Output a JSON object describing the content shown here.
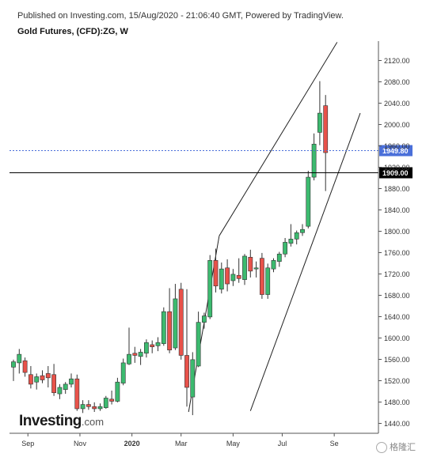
{
  "header": {
    "published": "Published on Investing.com, 15/Aug/2020 - 21:06:40 GMT, Powered by TradingView.",
    "title": "Gold Futures, (CFD):ZG, W"
  },
  "branding": {
    "logo_main": "Investing",
    "logo_suffix": ".com",
    "watermark": "格隆汇"
  },
  "colors": {
    "up": "#3cba6f",
    "down": "#e8524a",
    "current_price_line": "#4a6fd9",
    "reference_line": "#000000",
    "channel": "#222222"
  },
  "chart_data": {
    "type": "candlestick",
    "title": "Gold Futures, (CFD):ZG, W",
    "interval": "W",
    "ylim": [
      1420,
      2155
    ],
    "y_ticks": [
      1440,
      1480,
      1520,
      1560,
      1600,
      1640,
      1680,
      1720,
      1760,
      1800,
      1840,
      1880,
      1920,
      1960,
      2000,
      2040,
      2080,
      2120
    ],
    "y_tick_labels": [
      "1440.00",
      "1480.00",
      "1520.00",
      "1560.00",
      "1600.00",
      "1640.00",
      "1680.00",
      "1720.00",
      "1760.00",
      "1800.00",
      "1840.00",
      "1880.00",
      "1920.00",
      "1960.00",
      "2000.00",
      "2040.00",
      "2080.00",
      "2120.00"
    ],
    "x_labels": [
      {
        "label": "Sep",
        "index": 2.5
      },
      {
        "label": "Nov",
        "index": 11.5
      },
      {
        "label": "2020",
        "index": 20.5
      },
      {
        "label": "Mar",
        "index": 29
      },
      {
        "label": "May",
        "index": 38
      },
      {
        "label": "Jul",
        "index": 46.5
      },
      {
        "label": "Se",
        "index": 55.5
      }
    ],
    "candles": [
      {
        "o": 1544,
        "h": 1558,
        "l": 1518,
        "c": 1554
      },
      {
        "o": 1552,
        "h": 1578,
        "l": 1532,
        "c": 1568
      },
      {
        "o": 1556,
        "h": 1562,
        "l": 1526,
        "c": 1534
      },
      {
        "o": 1530,
        "h": 1546,
        "l": 1504,
        "c": 1512
      },
      {
        "o": 1516,
        "h": 1532,
        "l": 1502,
        "c": 1526
      },
      {
        "o": 1528,
        "h": 1538,
        "l": 1514,
        "c": 1520
      },
      {
        "o": 1532,
        "h": 1546,
        "l": 1506,
        "c": 1524
      },
      {
        "o": 1530,
        "h": 1550,
        "l": 1490,
        "c": 1496
      },
      {
        "o": 1494,
        "h": 1512,
        "l": 1484,
        "c": 1506
      },
      {
        "o": 1502,
        "h": 1516,
        "l": 1494,
        "c": 1512
      },
      {
        "o": 1512,
        "h": 1532,
        "l": 1506,
        "c": 1522
      },
      {
        "o": 1522,
        "h": 1530,
        "l": 1462,
        "c": 1466
      },
      {
        "o": 1466,
        "h": 1482,
        "l": 1458,
        "c": 1474
      },
      {
        "o": 1474,
        "h": 1482,
        "l": 1464,
        "c": 1470
      },
      {
        "o": 1470,
        "h": 1478,
        "l": 1460,
        "c": 1466
      },
      {
        "o": 1466,
        "h": 1476,
        "l": 1462,
        "c": 1470
      },
      {
        "o": 1468,
        "h": 1490,
        "l": 1466,
        "c": 1486
      },
      {
        "o": 1484,
        "h": 1500,
        "l": 1474,
        "c": 1480
      },
      {
        "o": 1480,
        "h": 1524,
        "l": 1478,
        "c": 1516
      },
      {
        "o": 1514,
        "h": 1560,
        "l": 1510,
        "c": 1552
      },
      {
        "o": 1550,
        "h": 1618,
        "l": 1548,
        "c": 1568
      },
      {
        "o": 1570,
        "h": 1582,
        "l": 1552,
        "c": 1566
      },
      {
        "o": 1564,
        "h": 1578,
        "l": 1548,
        "c": 1572
      },
      {
        "o": 1570,
        "h": 1596,
        "l": 1562,
        "c": 1590
      },
      {
        "o": 1586,
        "h": 1594,
        "l": 1570,
        "c": 1582
      },
      {
        "o": 1584,
        "h": 1600,
        "l": 1574,
        "c": 1590
      },
      {
        "o": 1588,
        "h": 1656,
        "l": 1584,
        "c": 1648
      },
      {
        "o": 1648,
        "h": 1692,
        "l": 1570,
        "c": 1576
      },
      {
        "o": 1580,
        "h": 1700,
        "l": 1576,
        "c": 1672
      },
      {
        "o": 1690,
        "h": 1702,
        "l": 1558,
        "c": 1566
      },
      {
        "o": 1566,
        "h": 1690,
        "l": 1470,
        "c": 1506
      },
      {
        "o": 1488,
        "h": 1572,
        "l": 1454,
        "c": 1558
      },
      {
        "o": 1546,
        "h": 1648,
        "l": 1544,
        "c": 1628
      },
      {
        "o": 1628,
        "h": 1646,
        "l": 1616,
        "c": 1640
      },
      {
        "o": 1638,
        "h": 1754,
        "l": 1634,
        "c": 1744
      },
      {
        "o": 1744,
        "h": 1766,
        "l": 1684,
        "c": 1696
      },
      {
        "o": 1690,
        "h": 1740,
        "l": 1682,
        "c": 1728
      },
      {
        "o": 1730,
        "h": 1746,
        "l": 1686,
        "c": 1700
      },
      {
        "o": 1706,
        "h": 1728,
        "l": 1696,
        "c": 1718
      },
      {
        "o": 1716,
        "h": 1748,
        "l": 1702,
        "c": 1710
      },
      {
        "o": 1708,
        "h": 1756,
        "l": 1698,
        "c": 1752
      },
      {
        "o": 1750,
        "h": 1764,
        "l": 1712,
        "c": 1724
      },
      {
        "o": 1728,
        "h": 1742,
        "l": 1712,
        "c": 1730
      },
      {
        "o": 1748,
        "h": 1758,
        "l": 1672,
        "c": 1680
      },
      {
        "o": 1680,
        "h": 1738,
        "l": 1672,
        "c": 1730
      },
      {
        "o": 1728,
        "h": 1748,
        "l": 1722,
        "c": 1744
      },
      {
        "o": 1742,
        "h": 1760,
        "l": 1732,
        "c": 1756
      },
      {
        "o": 1756,
        "h": 1786,
        "l": 1750,
        "c": 1778
      },
      {
        "o": 1776,
        "h": 1812,
        "l": 1770,
        "c": 1784
      },
      {
        "o": 1784,
        "h": 1800,
        "l": 1774,
        "c": 1796
      },
      {
        "o": 1796,
        "h": 1812,
        "l": 1790,
        "c": 1802
      },
      {
        "o": 1808,
        "h": 1912,
        "l": 1804,
        "c": 1900
      },
      {
        "o": 1900,
        "h": 1982,
        "l": 1894,
        "c": 1962
      },
      {
        "o": 1984,
        "h": 2080,
        "l": 1960,
        "c": 2020
      },
      {
        "o": 2034,
        "h": 2054,
        "l": 1874,
        "c": 1946
      }
    ],
    "price_lines": [
      {
        "value": 1949.8,
        "label": "1949.80",
        "style": "dotted",
        "color": "#4a6fd9"
      },
      {
        "value": 1909.0,
        "label": "1909.00",
        "style": "solid",
        "color": "#000000"
      }
    ],
    "channel_lines": [
      {
        "from": {
          "index": 41,
          "value": 1462
        },
        "to": {
          "index": 60,
          "value": 2020
        }
      },
      {
        "from": {
          "index": 30.3,
          "value": 1460
        },
        "to": {
          "index": 35.6,
          "value": 1790
        }
      },
      {
        "from": {
          "index": 35.6,
          "value": 1790
        },
        "to": {
          "index": 56,
          "value": 2153
        }
      }
    ]
  }
}
